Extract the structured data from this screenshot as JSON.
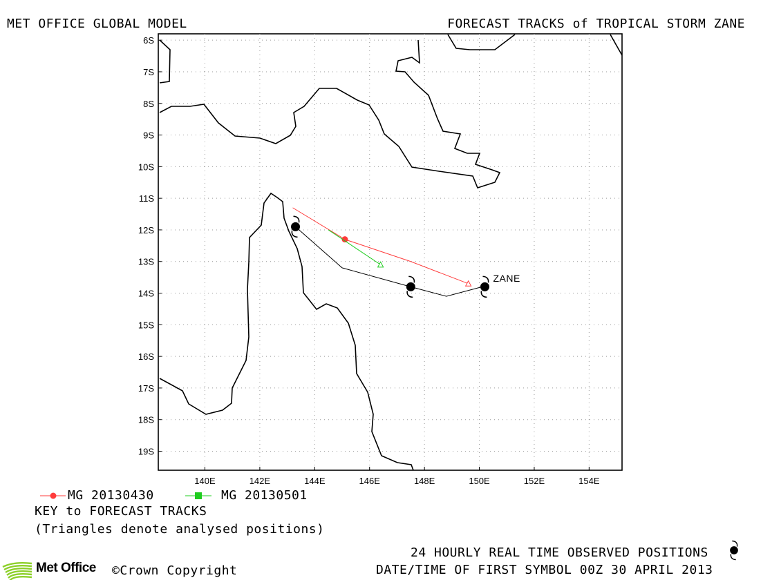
{
  "header": {
    "left_title": "MET OFFICE GLOBAL MODEL",
    "right_title": "FORECAST TRACKS of TROPICAL STORM ZANE"
  },
  "map": {
    "lon_range": [
      138.3,
      155.2
    ],
    "lat_range": [
      -19.6,
      -5.8
    ],
    "grid": true,
    "lat_ticks": [
      "6S",
      "7S",
      "8S",
      "9S",
      "10S",
      "11S",
      "12S",
      "13S",
      "14S",
      "15S",
      "16S",
      "17S",
      "18S",
      "19S"
    ],
    "lon_ticks": [
      "140E",
      "142E",
      "144E",
      "146E",
      "148E",
      "150E",
      "152E",
      "154E"
    ],
    "storm_label": "ZANE"
  },
  "legend": {
    "series": [
      {
        "label": "MG 20130430",
        "color": "#ff3b3b",
        "marker": "circle"
      },
      {
        "label": "MG 20130501",
        "color": "#1fcc1f",
        "marker": "square"
      }
    ],
    "key_title": "KEY to FORECAST TRACKS",
    "key_note": "(Triangles denote analysed positions)"
  },
  "footer": {
    "observed_label": "24 HOURLY REAL TIME OBSERVED POSITIONS",
    "datetime_label": "DATE/TIME OF FIRST SYMBOL 00Z 30 APRIL 2013",
    "logo_text": "Met Office",
    "copyright": "©Crown Copyright"
  },
  "chart_data": {
    "type": "map-tracks",
    "observed_track": [
      {
        "lon": 143.3,
        "lat": -11.9
      },
      {
        "lon": 145.0,
        "lat": -13.2
      },
      {
        "lon": 147.5,
        "lat": -13.8
      },
      {
        "lon": 148.8,
        "lat": -14.1
      },
      {
        "lon": 150.1,
        "lat": -13.8
      }
    ],
    "observed_symbols": [
      {
        "lon": 143.3,
        "lat": -11.9
      },
      {
        "lon": 147.5,
        "lat": -13.8
      },
      {
        "lon": 150.2,
        "lat": -13.8
      }
    ],
    "forecast_tracks": [
      {
        "name": "MG 20130430",
        "color": "#ff3b3b",
        "points": [
          {
            "lon": 143.2,
            "lat": -11.3
          },
          {
            "lon": 145.1,
            "lat": -12.3
          },
          {
            "lon": 147.5,
            "lat": -13.0
          },
          {
            "lon": 149.6,
            "lat": -13.7
          }
        ],
        "marker_point": {
          "lon": 145.1,
          "lat": -12.3
        },
        "triangle_point": {
          "lon": 149.6,
          "lat": -13.7
        }
      },
      {
        "name": "MG 20130501",
        "color": "#1fcc1f",
        "points": [
          {
            "lon": 144.5,
            "lat": -12.0
          },
          {
            "lon": 146.4,
            "lat": -13.1
          }
        ],
        "marker_point": null,
        "triangle_point": {
          "lon": 146.4,
          "lat": -13.1
        }
      }
    ]
  }
}
